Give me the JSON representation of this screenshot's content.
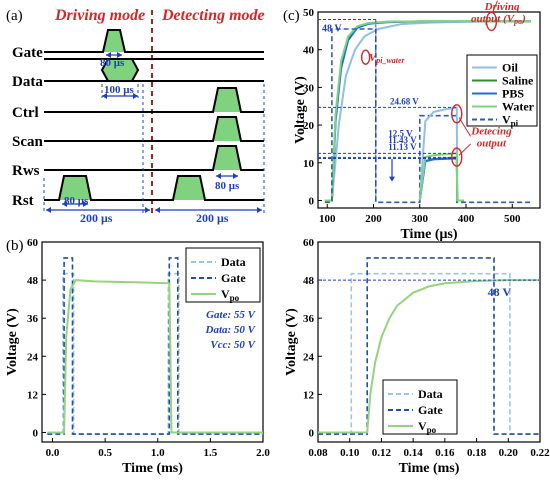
{
  "panel_a": {
    "label": "(a)",
    "modes": {
      "driving": "Driving mode",
      "detecting": "Detecting mode"
    },
    "signals": [
      "Gate",
      "Data",
      "Ctrl",
      "Scan",
      "Rws",
      "Rst"
    ],
    "timings": {
      "gate": "80 μs",
      "data": "100 μs",
      "rws": "80 μs",
      "rst": "80 μs",
      "period_left": "200 μs",
      "period_right": "200 μs"
    },
    "colors": {
      "mode_text": "#d62728",
      "timing_text": "#1f3fbf",
      "waveform": "#000000",
      "pulse_fill": "#7fd37f"
    }
  },
  "panel_b": {
    "label": "(b)",
    "annotations": [
      "Gate: 55 V",
      "Data: 50 V",
      "Vcc: 50 V"
    ]
  },
  "panel_c": {
    "label": "(c)",
    "annotations": {
      "driving_line1": "Driving",
      "driving_line2": "output (V",
      "driving_sub": "po",
      "driving_close": ")",
      "v48": "48 V",
      "vpi_water": "V",
      "vpi_water_sub": "pi_water",
      "v2468": "24.68 V",
      "v125": "12.5 V",
      "v1143": "11.43 V",
      "v1113": "11.13 V",
      "detect_line1": "Detecing",
      "detect_line2": "output"
    }
  },
  "panel_d": {
    "annotation": "48 V"
  },
  "chart_data": [
    {
      "type": "line",
      "panel": "b",
      "title": "",
      "xlabel": "Time (ms)",
      "ylabel": "Voltage (V)",
      "xlim": [
        -0.1,
        2.0
      ],
      "ylim": [
        -3,
        60
      ],
      "xticks": [
        "0.0",
        "0.5",
        "1.0",
        "1.5",
        "2.0"
      ],
      "yticks": [
        "0",
        "12",
        "24",
        "36",
        "48",
        "60"
      ],
      "legend": "top-right",
      "series": [
        {
          "name": "Data",
          "color": "#9ec3ea",
          "dash": "dashed",
          "x": [
            -0.05,
            0.1,
            0.1,
            0.2,
            0.2,
            1.1,
            1.1,
            1.2,
            1.2,
            2.0
          ],
          "y": [
            -0.5,
            -0.5,
            50,
            50,
            -0.5,
            -0.5,
            50,
            50,
            -0.5,
            -0.5
          ]
        },
        {
          "name": "Gate",
          "color": "#1f4fa8",
          "dash": "dashed",
          "x": [
            -0.05,
            0.11,
            0.11,
            0.19,
            0.19,
            1.11,
            1.11,
            1.19,
            1.19,
            2.0
          ],
          "y": [
            -0.5,
            -0.5,
            55,
            55,
            -0.5,
            -0.5,
            55,
            55,
            -0.5,
            -0.5
          ]
        },
        {
          "name": "Vpo",
          "name_sub": "po",
          "name_base": "V",
          "color": "#96d37f",
          "dash": "solid",
          "x": [
            -0.05,
            0.11,
            0.13,
            0.17,
            0.22,
            0.4,
            0.8,
            1.11,
            1.12,
            1.13,
            1.18,
            2.0
          ],
          "y": [
            0,
            0,
            30,
            45,
            48,
            47.6,
            47.3,
            47.0,
            25,
            0,
            0,
            0
          ]
        }
      ]
    },
    {
      "type": "line",
      "panel": "c",
      "title": "",
      "xlabel": "Time (μs)",
      "ylabel": "Voltage (V)",
      "xlim": [
        80,
        560
      ],
      "ylim": [
        -2,
        50
      ],
      "xticks": [
        "100",
        "200",
        "300",
        "400",
        "500"
      ],
      "yticks": [
        "0",
        "10",
        "20",
        "30",
        "40",
        "50"
      ],
      "legend": "right",
      "series": [
        {
          "name": "Oil",
          "color": "#8fc0e8",
          "dash": "solid",
          "x": [
            95,
            110,
            125,
            140,
            160,
            180,
            210,
            260,
            320,
            400,
            470,
            540
          ],
          "y": [
            0,
            0,
            20,
            33,
            40,
            43.5,
            45.5,
            46.8,
            47.2,
            47.4,
            47.5,
            47.5
          ]
        },
        {
          "name": "Saline",
          "color": "#2e8b2e",
          "dash": "solid",
          "x": [
            95,
            110,
            118,
            130,
            145,
            165,
            190,
            230,
            300,
            400,
            540
          ],
          "y": [
            0,
            0,
            22,
            36,
            43,
            46,
            47,
            47.4,
            47.5,
            47.5,
            47.5
          ]
        },
        {
          "name": "PBS",
          "color": "#1f6fd1",
          "dash": "solid",
          "x": [
            95,
            110,
            118,
            130,
            145,
            165,
            190,
            230,
            300,
            400,
            540
          ],
          "y": [
            0,
            0,
            21,
            35,
            42.5,
            45.8,
            46.9,
            47.3,
            47.5,
            47.5,
            47.5
          ]
        },
        {
          "name": "Water",
          "color": "#7fd37f",
          "dash": "solid",
          "x": [
            95,
            110,
            118,
            130,
            145,
            165,
            190,
            230,
            300,
            400,
            540
          ],
          "y": [
            0,
            0,
            23,
            37,
            43.5,
            46.2,
            47.1,
            47.4,
            47.5,
            47.5,
            47.5
          ]
        },
        {
          "name": "Vpi",
          "name_base": "V",
          "name_sub": "pi",
          "color": "#2a5db0",
          "dash": "dashed",
          "x": [
            95,
            110,
            110,
            205,
            205,
            300,
            300,
            380,
            380,
            540
          ],
          "y": [
            -0.5,
            -0.5,
            45.5,
            45.5,
            -0.5,
            -0.5,
            22.5,
            22.5,
            -0.5,
            -0.5
          ]
        }
      ],
      "detect_segments": [
        {
          "name": "Oil",
          "color": "#8fc0e8",
          "x": [
            300,
            312,
            330,
            360,
            380,
            381,
            395
          ],
          "y": [
            0,
            21,
            23.5,
            24.3,
            24.6,
            0,
            0
          ]
        },
        {
          "name": "Saline",
          "color": "#2e8b2e",
          "x": [
            300,
            312,
            330,
            360,
            380,
            381,
            395
          ],
          "y": [
            0,
            10.5,
            11.0,
            11.2,
            11.4,
            0,
            0
          ]
        },
        {
          "name": "PBS",
          "color": "#1f6fd1",
          "x": [
            300,
            312,
            330,
            360,
            380,
            381,
            395
          ],
          "y": [
            0,
            10.4,
            10.9,
            11.05,
            11.13,
            0,
            0
          ]
        },
        {
          "name": "Water",
          "color": "#7fd37f",
          "x": [
            300,
            312,
            330,
            360,
            380,
            381,
            395
          ],
          "y": [
            0,
            11.5,
            12.0,
            12.3,
            12.5,
            0,
            0
          ]
        }
      ]
    },
    {
      "type": "line",
      "panel": "d",
      "title": "",
      "xlabel": "Time (ms)",
      "ylabel": "Voltage (V)",
      "xlim": [
        0.08,
        0.22
      ],
      "ylim": [
        -3,
        60
      ],
      "xticks": [
        "0.08",
        "0.10",
        "0.12",
        "0.14",
        "0.16",
        "0.18",
        "0.20",
        "0.22"
      ],
      "yticks": [
        "0",
        "12",
        "24",
        "36",
        "48",
        "60"
      ],
      "legend": "bottom-left",
      "series": [
        {
          "name": "Data",
          "color": "#9ec3ea",
          "dash": "dashed",
          "x": [
            0.08,
            0.101,
            0.101,
            0.201,
            0.201,
            0.22
          ],
          "y": [
            -0.5,
            -0.5,
            50,
            50,
            -0.5,
            -0.5
          ]
        },
        {
          "name": "Gate",
          "color": "#1f4fa8",
          "dash": "dashed",
          "x": [
            0.08,
            0.111,
            0.111,
            0.191,
            0.191,
            0.22
          ],
          "y": [
            -0.5,
            -0.5,
            55,
            55,
            -0.5,
            -0.5
          ]
        },
        {
          "name": "Vpo",
          "name_base": "V",
          "name_sub": "po",
          "color": "#96d37f",
          "dash": "solid",
          "x": [
            0.08,
            0.111,
            0.113,
            0.116,
            0.12,
            0.125,
            0.13,
            0.14,
            0.15,
            0.16,
            0.18,
            0.2,
            0.22
          ],
          "y": [
            0,
            0,
            12,
            22,
            30,
            36,
            40,
            44,
            46,
            47,
            47.7,
            48,
            48
          ]
        }
      ]
    }
  ]
}
